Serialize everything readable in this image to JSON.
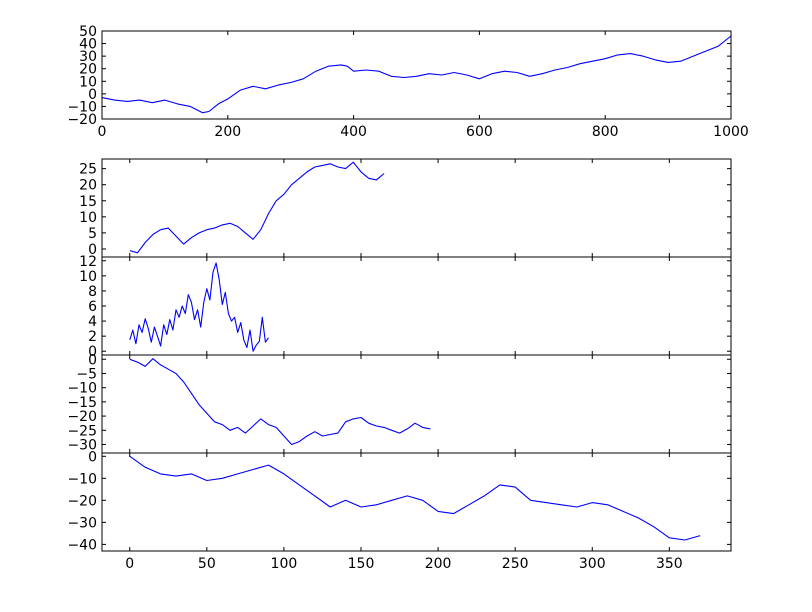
{
  "chart_data": [
    {
      "type": "line",
      "title": "",
      "xlabel": "",
      "ylabel": "",
      "xlim": [
        0,
        1000
      ],
      "ylim": [
        -20,
        50
      ],
      "xticks": [
        "0",
        "200",
        "400",
        "600",
        "800",
        "1000"
      ],
      "xtick_values": [
        0,
        200,
        400,
        600,
        800,
        1000
      ],
      "yticks": [
        "−20",
        "−10",
        "0",
        "10",
        "20",
        "30",
        "40",
        "50"
      ],
      "ytick_values": [
        -20,
        -10,
        0,
        10,
        20,
        30,
        40,
        50
      ],
      "grid": false,
      "color": "#0000ff",
      "series": [
        {
          "x": [
            0,
            20,
            40,
            60,
            80,
            100,
            120,
            140,
            160,
            170,
            185,
            200,
            220,
            240,
            260,
            280,
            300,
            320,
            340,
            360,
            380,
            390,
            400,
            420,
            440,
            460,
            480,
            500,
            520,
            540,
            560,
            580,
            600,
            620,
            640,
            660,
            680,
            700,
            720,
            740,
            760,
            780,
            800,
            820,
            840,
            860,
            880,
            900,
            920,
            940,
            960,
            980,
            1000
          ],
          "y": [
            -3,
            -5,
            -6,
            -5,
            -7,
            -5,
            -8,
            -10,
            -15,
            -14,
            -8,
            -4,
            3,
            6,
            4,
            7,
            9,
            12,
            18,
            22,
            23,
            22,
            18,
            19,
            18,
            14,
            13,
            14,
            16,
            15,
            17,
            15,
            12,
            16,
            18,
            17,
            14,
            16,
            19,
            21,
            24,
            26,
            28,
            31,
            32,
            30,
            27,
            25,
            26,
            30,
            34,
            38,
            46
          ]
        }
      ]
    },
    {
      "type": "line",
      "title": "",
      "xlabel": "",
      "ylabel": "",
      "xlim": [
        -18,
        390
      ],
      "ylim": [
        -2.5,
        28
      ],
      "yticks": [
        "0",
        "5",
        "10",
        "15",
        "20",
        "25"
      ],
      "ytick_values": [
        0,
        5,
        10,
        15,
        20,
        25
      ],
      "grid": false,
      "color": "#0000ff",
      "series": [
        {
          "x": [
            0,
            5,
            10,
            15,
            20,
            25,
            30,
            35,
            40,
            45,
            50,
            55,
            60,
            65,
            70,
            75,
            80,
            85,
            90,
            95,
            100,
            105,
            110,
            115,
            120,
            125,
            130,
            135,
            140,
            145,
            150,
            155,
            160,
            165
          ],
          "y": [
            -0.5,
            -1.2,
            2,
            4.5,
            6,
            6.5,
            4,
            1.5,
            3.5,
            5,
            6,
            6.5,
            7.5,
            8,
            7,
            5,
            3,
            6,
            11,
            15,
            17,
            20,
            22,
            24,
            25.5,
            26,
            26.5,
            25.5,
            25,
            27,
            24,
            22,
            21.5,
            23.5
          ]
        }
      ]
    },
    {
      "type": "line",
      "title": "",
      "xlabel": "",
      "ylabel": "",
      "xlim": [
        -18,
        390
      ],
      "ylim": [
        -0.5,
        12.5
      ],
      "yticks": [
        "0",
        "2",
        "4",
        "6",
        "8",
        "10",
        "12"
      ],
      "ytick_values": [
        0,
        2,
        4,
        6,
        8,
        10,
        12
      ],
      "grid": false,
      "color": "#0000ff",
      "series": [
        {
          "x": [
            0,
            2,
            4,
            6,
            8,
            10,
            12,
            14,
            16,
            18,
            20,
            22,
            24,
            26,
            28,
            30,
            32,
            34,
            36,
            38,
            40,
            42,
            44,
            46,
            48,
            50,
            52,
            54,
            56,
            58,
            60,
            62,
            64,
            66,
            68,
            70,
            72,
            74,
            76,
            78,
            80,
            82,
            84,
            86,
            88,
            90
          ],
          "y": [
            1.5,
            2.8,
            1.0,
            3.5,
            2.5,
            4.3,
            3.0,
            1.2,
            3.2,
            2.0,
            0.7,
            3.5,
            2.2,
            4.2,
            2.8,
            5.5,
            4.5,
            6.0,
            5.0,
            7.5,
            6.5,
            4.2,
            5.5,
            3.2,
            6.5,
            8.3,
            6.8,
            10.5,
            11.7,
            9.5,
            6.2,
            7.8,
            5.0,
            4.0,
            4.5,
            2.5,
            3.8,
            1.5,
            0.5,
            2.8,
            0.0,
            0.8,
            1.3,
            4.5,
            1.2,
            1.8
          ]
        }
      ]
    },
    {
      "type": "line",
      "title": "",
      "xlabel": "",
      "ylabel": "",
      "xlim": [
        -18,
        390
      ],
      "ylim": [
        -33,
        1.5
      ],
      "yticks": [
        "0",
        "−5",
        "−10",
        "−15",
        "−20",
        "−25",
        "−30"
      ],
      "ytick_values": [
        0,
        -5,
        -10,
        -15,
        -20,
        -25,
        -30
      ],
      "grid": false,
      "color": "#0000ff",
      "series": [
        {
          "x": [
            0,
            5,
            10,
            15,
            20,
            25,
            30,
            35,
            40,
            45,
            50,
            55,
            60,
            65,
            70,
            75,
            80,
            85,
            90,
            95,
            100,
            105,
            110,
            115,
            120,
            125,
            130,
            135,
            140,
            145,
            150,
            155,
            160,
            165,
            170,
            175,
            180,
            185,
            190,
            195
          ],
          "y": [
            0,
            -1,
            -2.5,
            0.2,
            -2,
            -3.5,
            -5,
            -8,
            -12,
            -16,
            -19,
            -22,
            -23,
            -25,
            -24,
            -26,
            -23.5,
            -21,
            -23,
            -24,
            -27,
            -30,
            -29,
            -27,
            -25.5,
            -27,
            -26.5,
            -26,
            -22,
            -21,
            -20.5,
            -22.5,
            -23.5,
            -24,
            -25,
            -26,
            -24.5,
            -22.5,
            -24,
            -24.5
          ]
        }
      ]
    },
    {
      "type": "line",
      "title": "",
      "xlabel": "",
      "ylabel": "",
      "xlim": [
        -18,
        390
      ],
      "ylim": [
        -43,
        1.5
      ],
      "xticks": [
        "0",
        "50",
        "100",
        "150",
        "200",
        "250",
        "300",
        "350"
      ],
      "xtick_values": [
        0,
        50,
        100,
        150,
        200,
        250,
        300,
        350
      ],
      "yticks": [
        "0",
        "−10",
        "−20",
        "−30",
        "−40"
      ],
      "ytick_values": [
        0,
        -10,
        -20,
        -30,
        -40
      ],
      "grid": false,
      "color": "#0000ff",
      "series": [
        {
          "x": [
            0,
            10,
            20,
            30,
            40,
            50,
            60,
            70,
            80,
            90,
            100,
            110,
            120,
            130,
            140,
            150,
            160,
            170,
            180,
            190,
            200,
            210,
            220,
            230,
            240,
            250,
            260,
            270,
            280,
            290,
            300,
            310,
            320,
            330,
            340,
            350,
            360,
            370
          ],
          "y": [
            0,
            -5,
            -8,
            -9,
            -8,
            -11,
            -10,
            -8,
            -6,
            -4,
            -8,
            -13,
            -18,
            -23,
            -20,
            -23,
            -22,
            -20,
            -18,
            -20,
            -25,
            -26,
            -22,
            -18,
            -13,
            -14,
            -20,
            -21,
            -22,
            -23,
            -21,
            -22,
            -25,
            -28,
            -32,
            -37,
            -38,
            -36
          ]
        }
      ]
    }
  ]
}
